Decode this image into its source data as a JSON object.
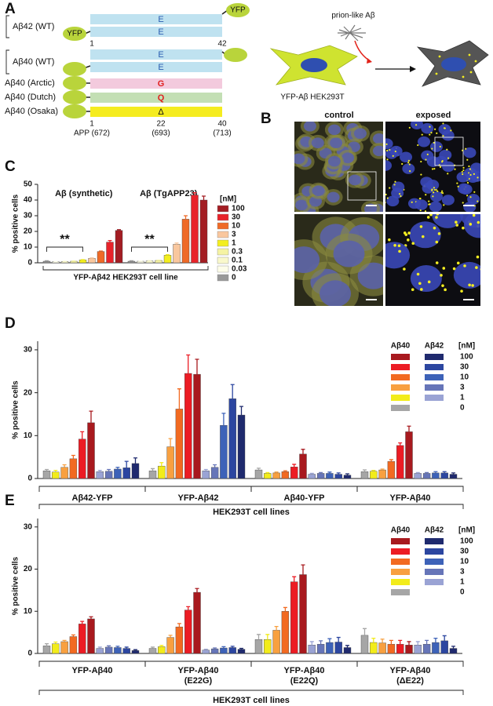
{
  "panel_a": {
    "letter": "A",
    "constructs": [
      {
        "label": "Aβ42 (WT)",
        "residues": [
          "E",
          "E"
        ]
      },
      {
        "label": "Aβ40 (WT)",
        "residues": [
          "E",
          "E"
        ]
      },
      {
        "label": "Aβ40 (Arctic)",
        "residues": [
          "G"
        ]
      },
      {
        "label": "Aβ40 (Dutch)",
        "residues": [
          "Q"
        ]
      },
      {
        "label": "Aβ40 (Osaka)",
        "residues": [
          "Δ"
        ]
      }
    ],
    "tag": [
      "YFP",
      "YFP"
    ],
    "top_positions": [
      "1",
      "42"
    ],
    "positions": [
      "1",
      "22",
      "40"
    ],
    "app_positions": [
      "APP (672)",
      "(693)",
      "(713)"
    ],
    "treatment": "prion-like Aβ",
    "cell_line": "YFP-Aβ HEK293T"
  },
  "panel_b": {
    "letter": "B",
    "columns": [
      "control",
      "exposed"
    ]
  },
  "chart_data": [
    {
      "panel": "C",
      "type": "bar",
      "categories": [
        "Aβ (synthetic)",
        "Aβ (TgAPP23)"
      ],
      "ylabel": "% positive cells",
      "xlabel": "YFP-Aβ42 HEK293T cell line",
      "ylim": [
        0,
        50
      ],
      "yticks": [
        0,
        10,
        20,
        30,
        40,
        50
      ],
      "legend_title": "[nM]",
      "annotations": [
        "**",
        "**"
      ],
      "series": [
        {
          "name": "100",
          "color": "#a31d23",
          "values": [
            20.6,
            40.0
          ],
          "errors": [
            0.5,
            2.5
          ]
        },
        {
          "name": "30",
          "color": "#e8232a",
          "values": [
            13.2,
            43.2
          ],
          "errors": [
            1.0,
            1.5
          ]
        },
        {
          "name": "10",
          "color": "#ef6a27",
          "values": [
            7.2,
            27.8
          ],
          "errors": [
            0.3,
            2.2
          ]
        },
        {
          "name": "3",
          "color": "#f9c79e",
          "values": [
            2.8,
            11.8
          ],
          "errors": [
            0.3,
            0.8
          ]
        },
        {
          "name": "1",
          "color": "#f3ee1e",
          "values": [
            1.8,
            4.8
          ],
          "errors": [
            0.2,
            0.4
          ]
        },
        {
          "name": "0.3",
          "color": "#f5f3a3",
          "values": [
            1.0,
            1.5
          ],
          "errors": [
            0.2,
            0.2
          ]
        },
        {
          "name": "0.1",
          "color": "#f9f8cc",
          "values": [
            0.8,
            1.2
          ],
          "errors": [
            0.1,
            0.2
          ]
        },
        {
          "name": "0.03",
          "color": "#fdfde9",
          "values": [
            0.7,
            1.0
          ],
          "errors": [
            0.1,
            0.2
          ]
        },
        {
          "name": "0",
          "color": "#999999",
          "values": [
            1.0,
            1.0
          ],
          "errors": [
            0.3,
            0.3
          ]
        }
      ]
    },
    {
      "panel": "D",
      "type": "dose_bar",
      "categories": [
        "Aβ42-YFP",
        "YFP-Aβ42",
        "Aβ40-YFP",
        "YFP-Aβ40"
      ],
      "ylabel": "% positive cells",
      "xlabel": "HEK293T cell lines",
      "ylim": [
        0,
        32
      ],
      "yticks": [
        0,
        10,
        20,
        30
      ],
      "legend_title": "[nM]",
      "concentrations": [
        "100",
        "30",
        "10",
        "3",
        "1"
      ],
      "control": {
        "name": "0",
        "color": "#a6a6a6",
        "values": [
          1.8,
          1.8,
          2.0,
          1.6
        ],
        "errors": [
          0.3,
          0.5,
          0.4,
          0.4
        ]
      },
      "series": [
        {
          "name": "Aβ40",
          "colors": [
            "#a8191e",
            "#ec1c24",
            "#f26a21",
            "#f8a040",
            "#f2ec1a"
          ],
          "values": [
            [
              13.0,
              24.3,
              5.7,
              10.9
            ],
            [
              9.2,
              24.5,
              2.7,
              7.7
            ],
            [
              4.6,
              16.2,
              1.6,
              4.0
            ],
            [
              2.6,
              7.4,
              1.3,
              2.0
            ],
            [
              1.5,
              2.9,
              1.2,
              1.7
            ]
          ],
          "errors": [
            [
              2.7,
              3.5,
              1.1,
              1.3
            ],
            [
              1.7,
              4.3,
              0.6,
              0.6
            ],
            [
              0.8,
              4.7,
              0.2,
              0.4
            ],
            [
              0.6,
              1.9,
              0.2,
              0.2
            ],
            [
              0.4,
              0.8,
              0.2,
              0.2
            ]
          ]
        },
        {
          "name": "Aβ42",
          "colors": [
            "#1f2a6e",
            "#2c46a0",
            "#3d62b8",
            "#6675b8",
            "#9aa3d4"
          ],
          "values": [
            [
              3.5,
              14.8,
              0.8,
              1.0
            ],
            [
              2.5,
              18.6,
              1.0,
              1.3
            ],
            [
              2.2,
              12.4,
              1.2,
              1.3
            ],
            [
              1.7,
              2.6,
              1.2,
              1.2
            ],
            [
              1.6,
              1.8,
              1.0,
              1.2
            ]
          ],
          "errors": [
            [
              1.3,
              2.0,
              0.3,
              0.3
            ],
            [
              1.5,
              3.3,
              0.3,
              0.3
            ],
            [
              0.4,
              2.8,
              0.3,
              0.3
            ],
            [
              0.4,
              0.6,
              0.2,
              0.2
            ],
            [
              0.3,
              0.3,
              0.2,
              0.2
            ]
          ]
        }
      ]
    },
    {
      "panel": "E",
      "type": "dose_bar",
      "categories": [
        [
          "YFP-Aβ40"
        ],
        [
          "YFP-Aβ40",
          "(E22G)"
        ],
        [
          "YFP-Aβ40",
          "(E22Q)"
        ],
        [
          "YFP-Aβ40",
          "(ΔE22)"
        ]
      ],
      "ylabel": "% positive cells",
      "xlabel": "HEK293T cell lines",
      "ylim": [
        0,
        32
      ],
      "yticks": [
        0,
        10,
        20,
        30
      ],
      "legend_title": "[nM]",
      "concentrations": [
        "100",
        "30",
        "10",
        "3",
        "1"
      ],
      "control": {
        "name": "0",
        "color": "#a6a6a6",
        "values": [
          1.8,
          1.2,
          3.3,
          4.3
        ],
        "errors": [
          0.5,
          0.3,
          1.2,
          1.6
        ]
      },
      "series": [
        {
          "name": "Aβ40",
          "colors": [
            "#a8191e",
            "#ec1c24",
            "#f26a21",
            "#f8a040",
            "#f2ec1a"
          ],
          "values": [
            [
              8.2,
              14.5,
              18.7,
              2.0
            ],
            [
              7.0,
              10.3,
              17.0,
              2.2
            ],
            [
              4.0,
              6.3,
              10.0,
              2.2
            ],
            [
              2.8,
              3.8,
              5.5,
              2.5
            ],
            [
              2.3,
              1.6,
              3.3,
              2.6
            ]
          ],
          "errors": [
            [
              0.5,
              0.9,
              2.3,
              0.8
            ],
            [
              0.6,
              0.8,
              1.2,
              0.9
            ],
            [
              0.4,
              0.8,
              0.9,
              0.9
            ],
            [
              0.3,
              0.5,
              0.9,
              0.9
            ],
            [
              0.4,
              0.3,
              1.2,
              1.0
            ]
          ]
        },
        {
          "name": "Aβ42",
          "colors": [
            "#1f2a6e",
            "#2c46a0",
            "#3d62b8",
            "#6675b8",
            "#9aa3d4"
          ],
          "values": [
            [
              0.7,
              1.0,
              1.4,
              1.2
            ],
            [
              1.2,
              1.4,
              2.7,
              3.0
            ],
            [
              1.4,
              1.3,
              2.6,
              2.6
            ],
            [
              1.5,
              1.1,
              2.2,
              2.2
            ],
            [
              1.2,
              0.8,
              2.0,
              2.0
            ]
          ],
          "errors": [
            [
              0.2,
              0.2,
              0.5,
              0.5
            ],
            [
              0.3,
              0.3,
              1.1,
              1.2
            ],
            [
              0.3,
              0.3,
              0.9,
              1.0
            ],
            [
              0.3,
              0.2,
              0.8,
              0.9
            ],
            [
              0.3,
              0.2,
              0.8,
              0.8
            ]
          ]
        }
      ]
    }
  ]
}
